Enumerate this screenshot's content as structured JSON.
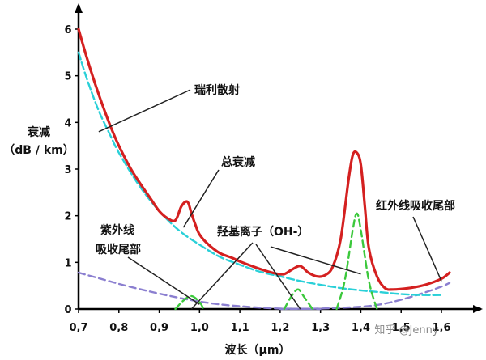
{
  "chart_data": {
    "type": "line",
    "xlabel": "波长（μm）",
    "ylabel_line1": "衰减",
    "ylabel_line2": "（dB / km）",
    "xlim": [
      0.7,
      1.65
    ],
    "ylim": [
      0,
      6.2
    ],
    "x_ticks": [
      0.7,
      0.8,
      0.9,
      1.0,
      1.1,
      1.2,
      1.3,
      1.4,
      1.5,
      1.6
    ],
    "x_tick_labels": [
      "0,7",
      "0,8",
      "0,9",
      "1,0",
      "1,1",
      "1,2",
      "1,3",
      "1,4",
      "1,5",
      "1,6"
    ],
    "y_ticks": [
      0,
      1,
      2,
      3,
      4,
      5,
      6
    ],
    "y_tick_labels": [
      "0",
      "1",
      "2",
      "3",
      "4",
      "5",
      "6"
    ],
    "grid": false,
    "series": [
      {
        "key": "total",
        "color": "#d42020",
        "style": "solid",
        "x": [
          0.7,
          0.72,
          0.75,
          0.78,
          0.8,
          0.83,
          0.86,
          0.88,
          0.9,
          0.92,
          0.94,
          0.955,
          0.97,
          0.98,
          0.99,
          1.0,
          1.02,
          1.05,
          1.08,
          1.1,
          1.13,
          1.16,
          1.19,
          1.21,
          1.23,
          1.25,
          1.27,
          1.29,
          1.31,
          1.33,
          1.35,
          1.37,
          1.38,
          1.39,
          1.4,
          1.41,
          1.42,
          1.44,
          1.46,
          1.48,
          1.52,
          1.56,
          1.6,
          1.62
        ],
        "y": [
          6.0,
          5.4,
          4.6,
          3.9,
          3.5,
          3.0,
          2.6,
          2.35,
          2.1,
          1.95,
          1.9,
          2.2,
          2.3,
          2.05,
          1.8,
          1.6,
          1.4,
          1.2,
          1.1,
          1.02,
          0.92,
          0.83,
          0.76,
          0.75,
          0.85,
          0.92,
          0.78,
          0.7,
          0.72,
          0.9,
          1.5,
          2.8,
          3.3,
          3.35,
          3.1,
          2.2,
          1.3,
          0.7,
          0.45,
          0.42,
          0.45,
          0.52,
          0.65,
          0.78
        ]
      },
      {
        "key": "rayleigh",
        "color": "#2ad0d8",
        "style": "dashed",
        "x": [
          0.7,
          0.72,
          0.75,
          0.78,
          0.8,
          0.85,
          0.9,
          0.95,
          1.0,
          1.05,
          1.1,
          1.15,
          1.2,
          1.25,
          1.3,
          1.35,
          1.4,
          1.45,
          1.5,
          1.55,
          1.6
        ],
        "y": [
          5.5,
          4.95,
          4.25,
          3.7,
          3.35,
          2.65,
          2.1,
          1.68,
          1.38,
          1.12,
          0.95,
          0.8,
          0.7,
          0.6,
          0.52,
          0.45,
          0.4,
          0.36,
          0.32,
          0.3,
          0.3
        ]
      },
      {
        "key": "uv_tail",
        "color": "#8b7fd0",
        "style": "dashed",
        "x": [
          0.7,
          0.75,
          0.8,
          0.85,
          0.9,
          0.95,
          1.0,
          1.05,
          1.1,
          1.15,
          1.2,
          1.25,
          1.3
        ],
        "y": [
          0.78,
          0.66,
          0.54,
          0.43,
          0.33,
          0.24,
          0.16,
          0.1,
          0.06,
          0.03,
          0.01,
          0.005,
          0.0
        ]
      },
      {
        "key": "ir_tail",
        "color": "#8b7fd0",
        "style": "dashed",
        "x": [
          1.2,
          1.3,
          1.4,
          1.45,
          1.5,
          1.55,
          1.6,
          1.62
        ],
        "y": [
          0.0,
          0.01,
          0.05,
          0.1,
          0.2,
          0.33,
          0.48,
          0.56
        ]
      },
      {
        "key": "oh_peak_1",
        "color": "#3cc83c",
        "style": "dashed",
        "x": [
          0.94,
          0.96,
          0.98,
          1.0,
          1.01
        ],
        "y": [
          0.0,
          0.18,
          0.28,
          0.15,
          0.0
        ]
      },
      {
        "key": "oh_peak_2",
        "color": "#3cc83c",
        "style": "dashed",
        "x": [
          1.21,
          1.23,
          1.245,
          1.26,
          1.28
        ],
        "y": [
          0.0,
          0.3,
          0.42,
          0.25,
          0.0
        ]
      },
      {
        "key": "oh_peak_3",
        "color": "#3cc83c",
        "style": "dashed",
        "x": [
          1.34,
          1.36,
          1.38,
          1.39,
          1.4,
          1.42,
          1.44
        ],
        "y": [
          0.0,
          0.6,
          1.7,
          2.05,
          1.7,
          0.6,
          0.0
        ]
      }
    ],
    "annotations": [
      {
        "key": "rayleigh",
        "text": "瑞利散射",
        "pointer_to": [
          0.75,
          3.8
        ]
      },
      {
        "key": "total",
        "text": "总衰减",
        "pointer_to": [
          0.96,
          1.75
        ]
      },
      {
        "key": "uv",
        "text_line1": "紫外线",
        "text_line2": "吸收尾部",
        "pointer_to": [
          1.0,
          0.1
        ]
      },
      {
        "key": "ir",
        "text": "红外线吸收尾部",
        "pointer_to": [
          1.6,
          0.6
        ]
      },
      {
        "key": "oh",
        "text": "羟基离子（OH-）",
        "pointer_to": [
          [
            0.98,
            0.0
          ],
          [
            1.25,
            0.0
          ],
          [
            1.4,
            0.75
          ]
        ]
      }
    ]
  },
  "watermark": "知乎 @Jenny"
}
